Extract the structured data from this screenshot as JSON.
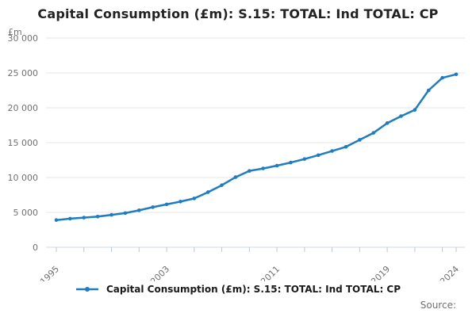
{
  "title": "Capital Consumption (£m): S.15: TOTAL: Ind TOTAL: CP",
  "unit_label": "£m",
  "source_label": "Source:",
  "legend": {
    "series_label": "Capital Consumption (£m): S.15: TOTAL: Ind TOTAL: CP"
  },
  "colors": {
    "line": "#1d7dc4",
    "grid": "#e6e6e6",
    "axis_line": "#d0d9e8",
    "tick_mark": "#b9c7de",
    "axis_text": "#707070",
    "title_text": "#222222"
  },
  "chart_data": {
    "type": "line",
    "title": "Capital Consumption (£m): S.15: TOTAL: Ind TOTAL: CP",
    "ylabel": "£m",
    "xlabel": "",
    "grid": "horizontal",
    "legend_position": "bottom",
    "ylim": [
      0,
      30000
    ],
    "ytick_step": 5000,
    "ytick_values": [
      0,
      5000,
      10000,
      15000,
      20000,
      25000,
      30000
    ],
    "ytick_labels": [
      "0",
      "5 000",
      "10 000",
      "15 000",
      "20 000",
      "25 000",
      "30 000"
    ],
    "xlim": [
      1995,
      2024
    ],
    "xtick_labeled_years": [
      1995,
      2003,
      2011,
      2019,
      2024
    ],
    "xtick_minor_years": [
      1995,
      1997,
      1999,
      2001,
      2003,
      2005,
      2007,
      2009,
      2011,
      2013,
      2015,
      2017,
      2019,
      2021,
      2023,
      2024
    ],
    "x": [
      1995,
      1996,
      1997,
      1998,
      1999,
      2000,
      2001,
      2002,
      2003,
      2004,
      2005,
      2006,
      2007,
      2008,
      2009,
      2010,
      2011,
      2012,
      2013,
      2014,
      2015,
      2016,
      2017,
      2018,
      2019,
      2020,
      2021,
      2022,
      2023,
      2024
    ],
    "series": [
      {
        "name": "Capital Consumption (£m): S.15: TOTAL: Ind TOTAL: CP",
        "values": [
          3900,
          4100,
          4250,
          4400,
          4650,
          4900,
          5300,
          5750,
          6150,
          6550,
          7000,
          7900,
          8900,
          10050,
          10950,
          11300,
          11700,
          12150,
          12650,
          13200,
          13800,
          14400,
          15400,
          16400,
          17800,
          18800,
          19700,
          22500,
          24300,
          24800
        ]
      }
    ]
  }
}
